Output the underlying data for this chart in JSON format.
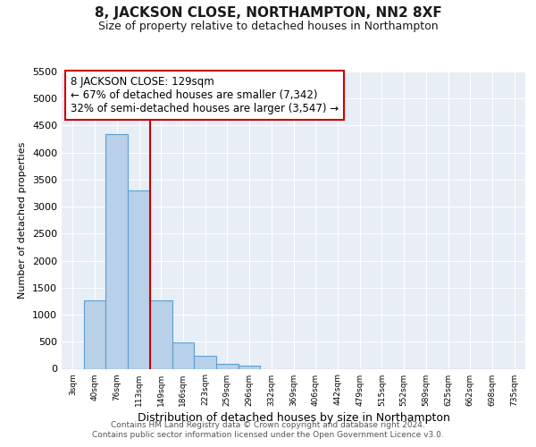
{
  "title": "8, JACKSON CLOSE, NORTHAMPTON, NN2 8XF",
  "subtitle": "Size of property relative to detached houses in Northampton",
  "xlabel": "Distribution of detached houses by size in Northampton",
  "ylabel": "Number of detached properties",
  "categories": [
    "3sqm",
    "40sqm",
    "76sqm",
    "113sqm",
    "149sqm",
    "186sqm",
    "223sqm",
    "259sqm",
    "296sqm",
    "332sqm",
    "369sqm",
    "406sqm",
    "442sqm",
    "479sqm",
    "515sqm",
    "552sqm",
    "589sqm",
    "625sqm",
    "662sqm",
    "698sqm",
    "735sqm"
  ],
  "values": [
    0,
    1270,
    4350,
    3300,
    1270,
    490,
    240,
    90,
    50,
    0,
    0,
    0,
    0,
    0,
    0,
    0,
    0,
    0,
    0,
    0,
    0
  ],
  "bar_color": "#b8d0e8",
  "bar_edge_color": "#5a9fd4",
  "ylim_min": 0,
  "ylim_max": 5500,
  "yticks": [
    0,
    500,
    1000,
    1500,
    2000,
    2500,
    3000,
    3500,
    4000,
    4500,
    5000,
    5500
  ],
  "property_line_x": 3.5,
  "property_line_color": "#cc0000",
  "annotation_title": "8 JACKSON CLOSE: 129sqm",
  "annotation_line1": "← 67% of detached houses are smaller (7,342)",
  "annotation_line2": "32% of semi-detached houses are larger (3,547) →",
  "annotation_box_edgecolor": "#cc0000",
  "bg_color": "#e8eef5",
  "grid_color": "#ffffff",
  "footer_line1": "Contains HM Land Registry data © Crown copyright and database right 2024.",
  "footer_line2": "Contains public sector information licensed under the Open Government Licence v3.0."
}
